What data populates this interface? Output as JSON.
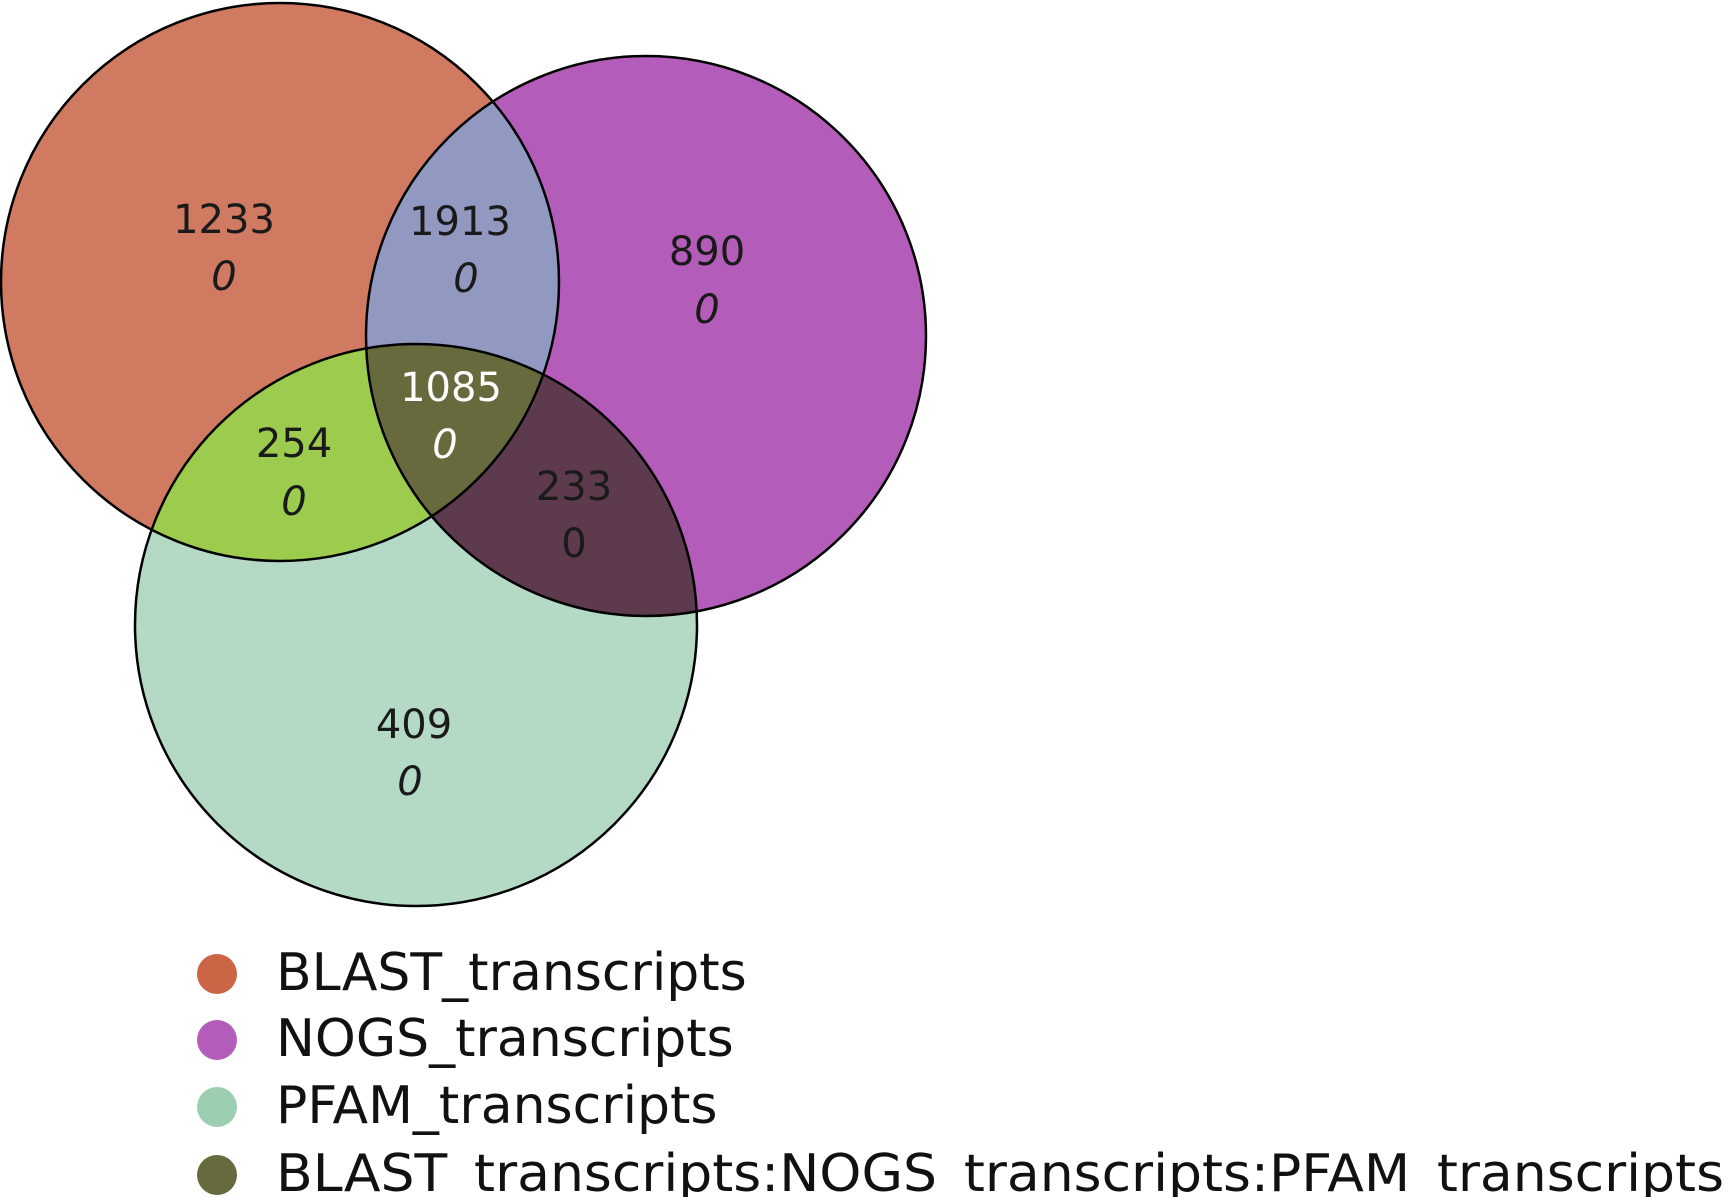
{
  "sets": [
    {
      "name": "BLAST_transcripts",
      "color": "#d07a62"
    },
    {
      "name": "NOGS_transcripts",
      "color": "#b45cb9"
    },
    {
      "name": "PFAM_transcripts",
      "color": "#b4dac6"
    }
  ],
  "regions": {
    "blast_only": {
      "count": "1233",
      "sub": "0",
      "color": "#d07a62"
    },
    "blast_nogs": {
      "count": "1913",
      "sub": "0",
      "color": "#9199c0"
    },
    "nogs_only": {
      "count": "890",
      "sub": "0",
      "color": "#b45cb9"
    },
    "blast_pfam": {
      "count": "254",
      "sub": "0",
      "color": "#9ccb4e"
    },
    "all_three": {
      "count": "1085",
      "sub": "0",
      "color": "#666a3c"
    },
    "nogs_pfam": {
      "count": "233",
      "sub": "0",
      "color": "#5e3a4e"
    },
    "pfam_only": {
      "count": "409",
      "sub": "0",
      "color": "#b4dac6"
    }
  },
  "legend": [
    {
      "label": "BLAST_transcripts",
      "color": "#cb6545"
    },
    {
      "label": "NOGS_transcripts",
      "color": "#b45cb9"
    },
    {
      "label": "PFAM_transcripts",
      "color": "#9ccfb1"
    },
    {
      "label": "BLAST_transcripts:NOGS_transcripts:PFAM_transcripts",
      "color": "#666a3c"
    }
  ]
}
